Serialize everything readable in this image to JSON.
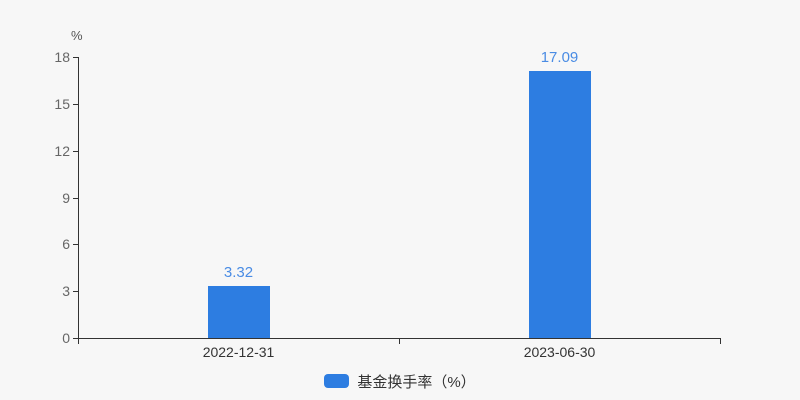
{
  "colors": {
    "background": "#f7f7f7",
    "axis_line": "#333333",
    "ytick_label": "#666666",
    "xtick_label": "#333333",
    "bar_fill": "#2d7de1",
    "value_label": "#4a8ce4",
    "legend_text": "#333333"
  },
  "chart_data": {
    "type": "bar",
    "categories": [
      "2022-12-31",
      "2023-06-30"
    ],
    "values": [
      3.32,
      17.09
    ],
    "value_labels": [
      "3.32",
      "17.09"
    ],
    "title": "",
    "xlabel": "",
    "ylabel": "%",
    "ylim": [
      0,
      18
    ],
    "yticks": [
      0,
      3,
      6,
      9,
      12,
      15,
      18
    ],
    "grid": false,
    "legend": [
      "基金换手率（%）"
    ],
    "legend_position": "bottom-center"
  }
}
